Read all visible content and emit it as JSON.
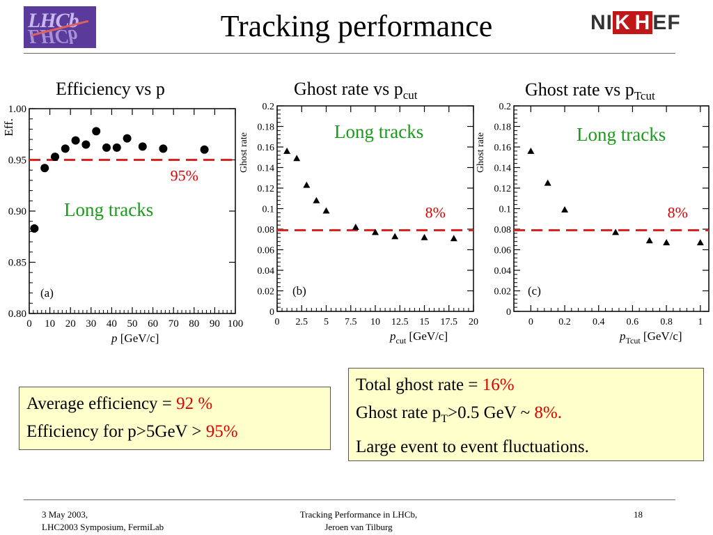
{
  "header": {
    "title": "Tracking performance",
    "logo_left": "LHCb",
    "logo_right": "NIKHEF"
  },
  "panels": [
    {
      "title": "Efficiency vs p",
      "title_sub": ""
    },
    {
      "title": "Ghost rate vs p",
      "title_sub": "cut"
    },
    {
      "title": "Ghost rate vs p",
      "title_sub": "Tcut"
    }
  ],
  "chart_data": [
    {
      "type": "scatter",
      "panel_label": "(a)",
      "ylabel": "Eff.",
      "xlabel_var": "p",
      "xlabel_sub": "",
      "xlabel_unit": "[GeV/c]",
      "xlim": [
        0,
        100
      ],
      "ylim": [
        0.8,
        1.0
      ],
      "xticks": [
        0,
        10,
        20,
        30,
        40,
        50,
        60,
        70,
        80,
        90,
        100
      ],
      "yticks": [
        0.8,
        0.85,
        0.9,
        0.95,
        1.0
      ],
      "ytick_labels": [
        "0.80",
        "0.85",
        "0.90",
        "0.95",
        "1.00"
      ],
      "marker": "circle",
      "x": [
        2.5,
        7.5,
        12.5,
        17.5,
        22.5,
        27.5,
        32.5,
        37.5,
        42.5,
        47.5,
        55,
        65,
        85
      ],
      "y": [
        0.883,
        0.942,
        0.953,
        0.961,
        0.969,
        0.965,
        0.978,
        0.962,
        0.962,
        0.971,
        0.963,
        0.961,
        0.96
      ],
      "reference_line": {
        "value": 0.95,
        "label": "95%"
      },
      "annotation": "Long tracks"
    },
    {
      "type": "scatter",
      "panel_label": "(b)",
      "ylabel": "Ghost rate",
      "xlabel_var": "p",
      "xlabel_sub": "cut",
      "xlabel_unit": "[GeV/c]",
      "xlim": [
        0,
        20
      ],
      "ylim": [
        0,
        0.2
      ],
      "xticks": [
        0,
        2.5,
        5,
        7.5,
        10,
        12.5,
        15,
        17.5,
        20
      ],
      "yticks": [
        0,
        0.02,
        0.04,
        0.06,
        0.08,
        0.1,
        0.12,
        0.14,
        0.16,
        0.18,
        0.2
      ],
      "ytick_labels": [
        "0",
        "0.02",
        "0.04",
        "0.06",
        "0.08",
        "0.1",
        "0.12",
        "0.14",
        "0.16",
        "0.18",
        "0.2"
      ],
      "marker": "triangle",
      "x": [
        1,
        2,
        3,
        4,
        5,
        8,
        10,
        12,
        15,
        18
      ],
      "y": [
        0.156,
        0.149,
        0.123,
        0.108,
        0.098,
        0.082,
        0.077,
        0.073,
        0.072,
        0.071
      ],
      "reference_line": {
        "value": 0.079,
        "label": "8%"
      },
      "annotation": "Long tracks"
    },
    {
      "type": "scatter",
      "panel_label": "(c)",
      "ylabel": "Ghost rate",
      "xlabel_var": "p",
      "xlabel_sub": "Tcut",
      "xlabel_unit": "[GeV/c]",
      "xlim": [
        -0.1,
        1.05
      ],
      "ylim": [
        0,
        0.2
      ],
      "xticks": [
        0,
        0.2,
        0.4,
        0.6,
        0.8,
        1
      ],
      "yticks": [
        0,
        0.02,
        0.04,
        0.06,
        0.08,
        0.1,
        0.12,
        0.14,
        0.16,
        0.18,
        0.2
      ],
      "ytick_labels": [
        "0",
        "0.02",
        "0.04",
        "0.06",
        "0.08",
        "0.1",
        "0.12",
        "0.14",
        "0.16",
        "0.18",
        "0.2"
      ],
      "marker": "triangle",
      "x": [
        0,
        0.1,
        0.2,
        0.5,
        0.7,
        0.8,
        1.0
      ],
      "y": [
        0.156,
        0.125,
        0.099,
        0.077,
        0.069,
        0.067,
        0.067
      ],
      "reference_line": {
        "value": 0.079,
        "label": "8%"
      },
      "annotation": "Long tracks"
    }
  ],
  "summary_left": {
    "line1_text": "Average efficiency = ",
    "line1_value": "92 %",
    "line2_text": "Efficiency for p>5GeV > ",
    "line2_value": "95%"
  },
  "summary_right": {
    "line1_text": "Total ghost rate = ",
    "line1_value": "16%",
    "line2_a": "Ghost rate p",
    "line2_sub": "T",
    "line2_b": ">0.5 GeV ~ ",
    "line2_value": "8%.",
    "line3_text": "Large event to event fluctuations."
  },
  "footer": {
    "left_line1": "3 May 2003,",
    "left_line2": "LHC2003 Symposium, FermiLab",
    "center_line1": "Tracking Performance in LHCb,",
    "center_line2": "Jeroen van Tilburg",
    "page_number": "18"
  },
  "colors": {
    "reference_line": "#dd2222",
    "annotation": "#1a9a1a",
    "accent_red": "#dd0000",
    "box_bg": "#ffffcc"
  }
}
